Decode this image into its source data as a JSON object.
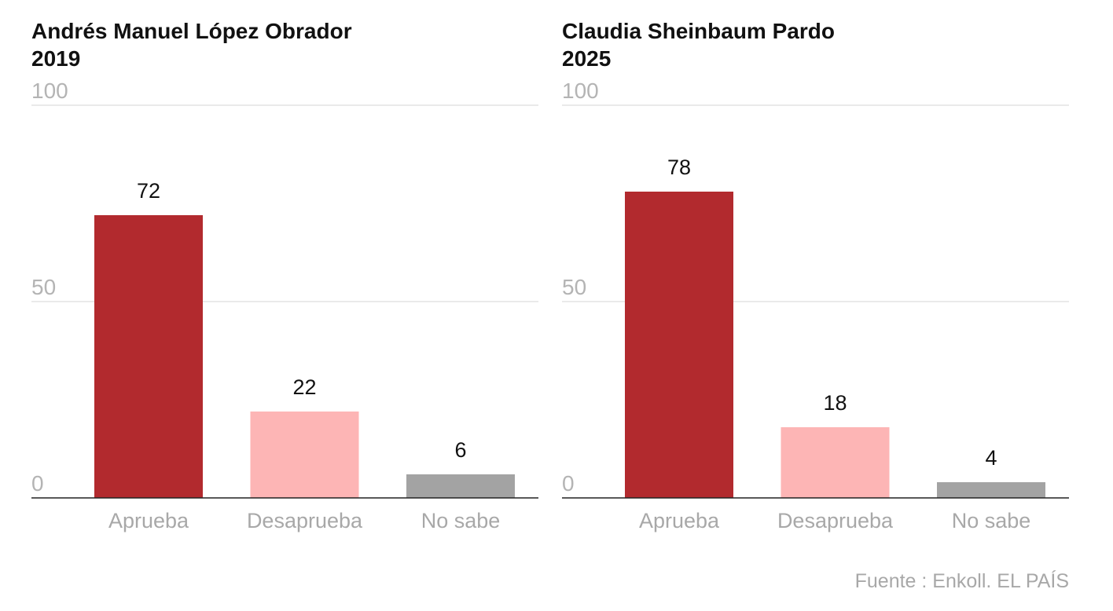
{
  "source": "Fuente : Enkoll. EL PAÍS",
  "colors": {
    "aprueba": "#b22a2e",
    "desaprueba": "#fdb5b5",
    "no_sabe": "#a3a3a3"
  },
  "chart_data": [
    {
      "type": "bar",
      "title": "Andrés Manuel López Obrador",
      "subtitle": "2019",
      "categories": [
        "Aprueba",
        "Desaprueba",
        "No sabe"
      ],
      "values": [
        72,
        22,
        6
      ],
      "ylim": [
        0,
        100
      ],
      "yticks": [
        0,
        50,
        100
      ],
      "grid": true,
      "xlabel": "",
      "ylabel": ""
    },
    {
      "type": "bar",
      "title": "Claudia Sheinbaum Pardo",
      "subtitle": "2025",
      "categories": [
        "Aprueba",
        "Desaprueba",
        "No sabe"
      ],
      "values": [
        78,
        18,
        4
      ],
      "ylim": [
        0,
        100
      ],
      "yticks": [
        0,
        50,
        100
      ],
      "grid": true,
      "xlabel": "",
      "ylabel": ""
    }
  ]
}
